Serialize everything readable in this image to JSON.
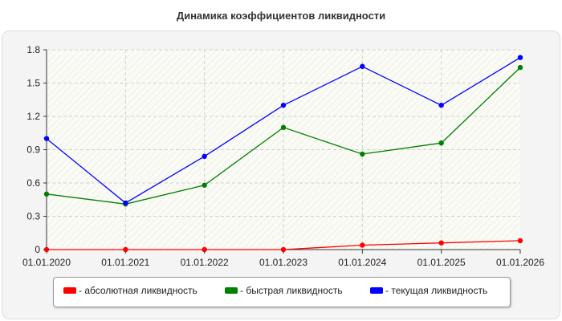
{
  "chart_data": {
    "type": "line",
    "title": "Динамика коэффициентов ликвидности",
    "categories": [
      "01.01.2020",
      "01.01.2021",
      "01.01.2022",
      "01.01.2023",
      "01.01.2024",
      "01.01.2025",
      "01.01.2026"
    ],
    "yticks": [
      "0",
      "0.3",
      "0.6",
      "0.9",
      "1.2",
      "1.5",
      "1.8"
    ],
    "ylim": [
      0,
      1.8
    ],
    "grid": true,
    "legend_position": "bottom",
    "series": [
      {
        "name": "- абсолютная ликвидность",
        "color": "#ff0000",
        "values": [
          0.0,
          0.0,
          0.0,
          0.0,
          0.04,
          0.06,
          0.08
        ]
      },
      {
        "name": "- быстрая ликвидность",
        "color": "#008000",
        "values": [
          0.5,
          0.41,
          0.58,
          1.1,
          0.86,
          0.96,
          1.64
        ]
      },
      {
        "name": "- текущая ликвидность",
        "color": "#0000ff",
        "values": [
          1.0,
          0.42,
          0.84,
          1.3,
          1.65,
          1.3,
          1.73
        ]
      }
    ]
  }
}
